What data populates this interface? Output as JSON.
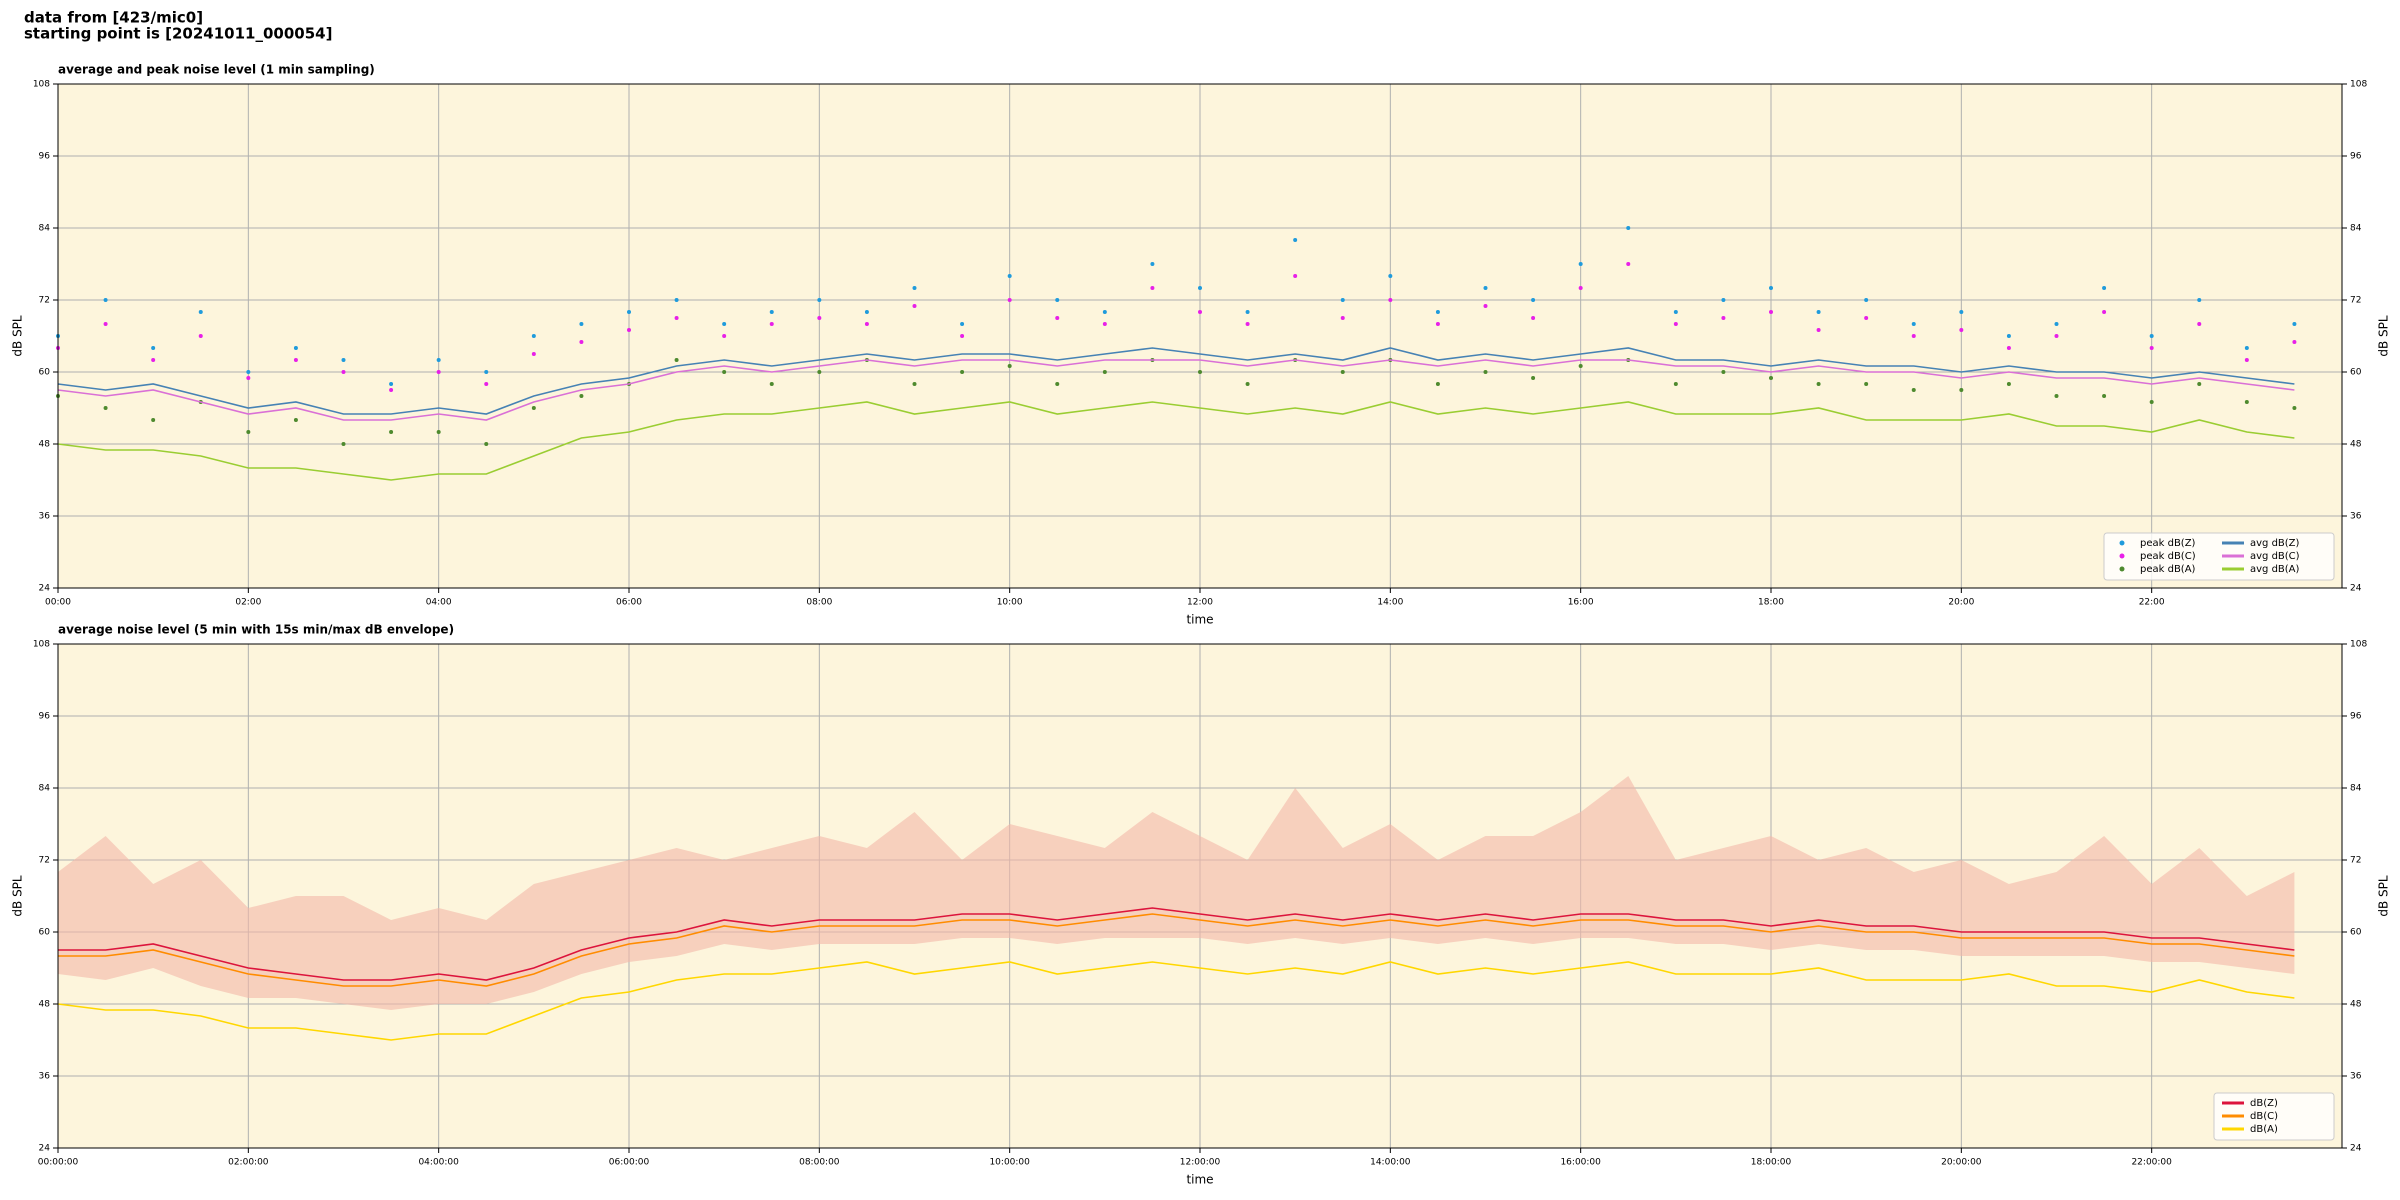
{
  "header": [
    "data from [423/mic0]",
    "starting point is [20241011_000054]"
  ],
  "chart_data": [
    {
      "type": "line",
      "title": "average and peak noise level (1 min sampling)",
      "xlabel": "time",
      "ylabel": "dB SPL",
      "xlim": [
        0,
        24
      ],
      "ylim": [
        24,
        108
      ],
      "xticks": [
        {
          "value": 0,
          "label": "00:00"
        },
        {
          "value": 2,
          "label": "02:00"
        },
        {
          "value": 4,
          "label": "04:00"
        },
        {
          "value": 6,
          "label": "06:00"
        },
        {
          "value": 8,
          "label": "08:00"
        },
        {
          "value": 10,
          "label": "10:00"
        },
        {
          "value": 12,
          "label": "12:00"
        },
        {
          "value": 14,
          "label": "14:00"
        },
        {
          "value": 16,
          "label": "16:00"
        },
        {
          "value": 18,
          "label": "18:00"
        },
        {
          "value": 20,
          "label": "20:00"
        },
        {
          "value": 22,
          "label": "22:00"
        }
      ],
      "yticks": [
        24,
        36,
        48,
        60,
        72,
        84,
        96,
        108
      ],
      "grid": true,
      "legend": "lower right",
      "background": "#fdf5dc",
      "x": [
        0,
        0.5,
        1,
        1.5,
        2,
        2.5,
        3,
        3.5,
        4,
        4.5,
        5,
        5.5,
        6,
        6.5,
        7,
        7.5,
        8,
        8.5,
        9,
        9.5,
        10,
        10.5,
        11,
        11.5,
        12,
        12.5,
        13,
        13.5,
        14,
        14.5,
        15,
        15.5,
        16,
        16.5,
        17,
        17.5,
        18,
        18.5,
        19,
        19.5,
        20,
        20.5,
        21,
        21.5,
        22,
        22.5,
        23,
        23.5
      ],
      "series": [
        {
          "name": "peak dB(Z)",
          "type": "scatter",
          "color": "#1f9bdc",
          "values": [
            66,
            72,
            64,
            70,
            60,
            64,
            62,
            58,
            62,
            60,
            66,
            68,
            70,
            72,
            68,
            70,
            72,
            70,
            74,
            68,
            76,
            72,
            70,
            78,
            74,
            70,
            82,
            72,
            76,
            70,
            74,
            72,
            78,
            84,
            70,
            72,
            74,
            70,
            72,
            68,
            70,
            66,
            68,
            74,
            66,
            72,
            64,
            68
          ]
        },
        {
          "name": "peak dB(C)",
          "type": "scatter",
          "color": "#e81fe8",
          "values": [
            64,
            68,
            62,
            66,
            59,
            62,
            60,
            57,
            60,
            58,
            63,
            65,
            67,
            69,
            66,
            68,
            69,
            68,
            71,
            66,
            72,
            69,
            68,
            74,
            70,
            68,
            76,
            69,
            72,
            68,
            71,
            69,
            74,
            78,
            68,
            69,
            70,
            67,
            69,
            66,
            67,
            64,
            66,
            70,
            64,
            68,
            62,
            65
          ]
        },
        {
          "name": "peak dB(A)",
          "type": "scatter",
          "color": "#4e8a2e",
          "values": [
            56,
            54,
            52,
            55,
            50,
            52,
            48,
            50,
            50,
            48,
            54,
            56,
            58,
            62,
            60,
            58,
            60,
            62,
            58,
            60,
            61,
            58,
            60,
            62,
            60,
            58,
            62,
            60,
            62,
            58,
            60,
            59,
            61,
            62,
            58,
            60,
            59,
            58,
            58,
            57,
            57,
            58,
            56,
            56,
            55,
            58,
            55,
            54
          ]
        },
        {
          "name": "avg dB(Z)",
          "type": "line",
          "color": "#4682b4",
          "values": [
            58,
            57,
            58,
            56,
            54,
            55,
            53,
            53,
            54,
            53,
            56,
            58,
            59,
            61,
            62,
            61,
            62,
            63,
            62,
            63,
            63,
            62,
            63,
            64,
            63,
            62,
            63,
            62,
            64,
            62,
            63,
            62,
            63,
            64,
            62,
            62,
            61,
            62,
            61,
            61,
            60,
            61,
            60,
            60,
            59,
            60,
            59,
            58
          ]
        },
        {
          "name": "avg dB(C)",
          "type": "line",
          "color": "#da70d6",
          "values": [
            57,
            56,
            57,
            55,
            53,
            54,
            52,
            52,
            53,
            52,
            55,
            57,
            58,
            60,
            61,
            60,
            61,
            62,
            61,
            62,
            62,
            61,
            62,
            62,
            62,
            61,
            62,
            61,
            62,
            61,
            62,
            61,
            62,
            62,
            61,
            61,
            60,
            61,
            60,
            60,
            59,
            60,
            59,
            59,
            58,
            59,
            58,
            57
          ]
        },
        {
          "name": "avg dB(A)",
          "type": "line",
          "color": "#9acd32",
          "values": [
            48,
            47,
            47,
            46,
            44,
            44,
            43,
            42,
            43,
            43,
            46,
            49,
            50,
            52,
            53,
            53,
            54,
            55,
            53,
            54,
            55,
            53,
            54,
            55,
            54,
            53,
            54,
            53,
            55,
            53,
            54,
            53,
            54,
            55,
            53,
            53,
            53,
            54,
            52,
            52,
            52,
            53,
            51,
            51,
            50,
            52,
            50,
            49
          ]
        }
      ]
    },
    {
      "type": "line",
      "title": "average noise level (5 min with 15s min/max dB envelope)",
      "xlabel": "time",
      "ylabel": "dB SPL",
      "xlim": [
        0,
        24
      ],
      "ylim": [
        24,
        108
      ],
      "xticks": [
        {
          "value": 0,
          "label": "00:00:00"
        },
        {
          "value": 2,
          "label": "02:00:00"
        },
        {
          "value": 4,
          "label": "04:00:00"
        },
        {
          "value": 6,
          "label": "06:00:00"
        },
        {
          "value": 8,
          "label": "08:00:00"
        },
        {
          "value": 10,
          "label": "10:00:00"
        },
        {
          "value": 12,
          "label": "12:00:00"
        },
        {
          "value": 14,
          "label": "14:00:00"
        },
        {
          "value": 16,
          "label": "16:00:00"
        },
        {
          "value": 18,
          "label": "18:00:00"
        },
        {
          "value": 20,
          "label": "20:00:00"
        },
        {
          "value": 22,
          "label": "22:00:00"
        }
      ],
      "yticks": [
        24,
        36,
        48,
        60,
        72,
        84,
        96,
        108
      ],
      "grid": true,
      "legend": "lower right",
      "background": "#fdf5dc",
      "x": [
        0,
        0.5,
        1,
        1.5,
        2,
        2.5,
        3,
        3.5,
        4,
        4.5,
        5,
        5.5,
        6,
        6.5,
        7,
        7.5,
        8,
        8.5,
        9,
        9.5,
        10,
        10.5,
        11,
        11.5,
        12,
        12.5,
        13,
        13.5,
        14,
        14.5,
        15,
        15.5,
        16,
        16.5,
        17,
        17.5,
        18,
        18.5,
        19,
        19.5,
        20,
        20.5,
        21,
        21.5,
        22,
        22.5,
        23,
        23.5
      ],
      "band": {
        "color": "#f4b8a8",
        "low": [
          53,
          52,
          54,
          51,
          49,
          49,
          48,
          47,
          48,
          48,
          50,
          53,
          55,
          56,
          58,
          57,
          58,
          58,
          58,
          59,
          59,
          58,
          59,
          59,
          59,
          58,
          59,
          58,
          59,
          58,
          59,
          58,
          59,
          59,
          58,
          58,
          57,
          58,
          57,
          57,
          56,
          56,
          56,
          56,
          55,
          55,
          54,
          53
        ],
        "high": [
          70,
          76,
          68,
          72,
          64,
          66,
          66,
          62,
          64,
          62,
          68,
          70,
          72,
          74,
          72,
          74,
          76,
          74,
          80,
          72,
          78,
          76,
          74,
          80,
          76,
          72,
          84,
          74,
          78,
          72,
          76,
          76,
          80,
          86,
          72,
          74,
          76,
          72,
          74,
          70,
          72,
          68,
          70,
          76,
          68,
          74,
          66,
          70
        ]
      },
      "series": [
        {
          "name": "dB(Z)",
          "type": "line",
          "color": "#dc143c",
          "values": [
            57,
            57,
            58,
            56,
            54,
            53,
            52,
            52,
            53,
            52,
            54,
            57,
            59,
            60,
            62,
            61,
            62,
            62,
            62,
            63,
            63,
            62,
            63,
            64,
            63,
            62,
            63,
            62,
            63,
            62,
            63,
            62,
            63,
            63,
            62,
            62,
            61,
            62,
            61,
            61,
            60,
            60,
            60,
            60,
            59,
            59,
            58,
            57
          ]
        },
        {
          "name": "dB(C)",
          "type": "line",
          "color": "#ff8c00",
          "values": [
            56,
            56,
            57,
            55,
            53,
            52,
            51,
            51,
            52,
            51,
            53,
            56,
            58,
            59,
            61,
            60,
            61,
            61,
            61,
            62,
            62,
            61,
            62,
            63,
            62,
            61,
            62,
            61,
            62,
            61,
            62,
            61,
            62,
            62,
            61,
            61,
            60,
            61,
            60,
            60,
            59,
            59,
            59,
            59,
            58,
            58,
            57,
            56
          ]
        },
        {
          "name": "dB(A)",
          "type": "line",
          "color": "#ffd700",
          "values": [
            48,
            47,
            47,
            46,
            44,
            44,
            43,
            42,
            43,
            43,
            46,
            49,
            50,
            52,
            53,
            53,
            54,
            55,
            53,
            54,
            55,
            53,
            54,
            55,
            54,
            53,
            54,
            53,
            55,
            53,
            54,
            53,
            54,
            55,
            53,
            53,
            53,
            54,
            52,
            52,
            52,
            53,
            51,
            51,
            50,
            52,
            50,
            49
          ]
        }
      ]
    }
  ]
}
